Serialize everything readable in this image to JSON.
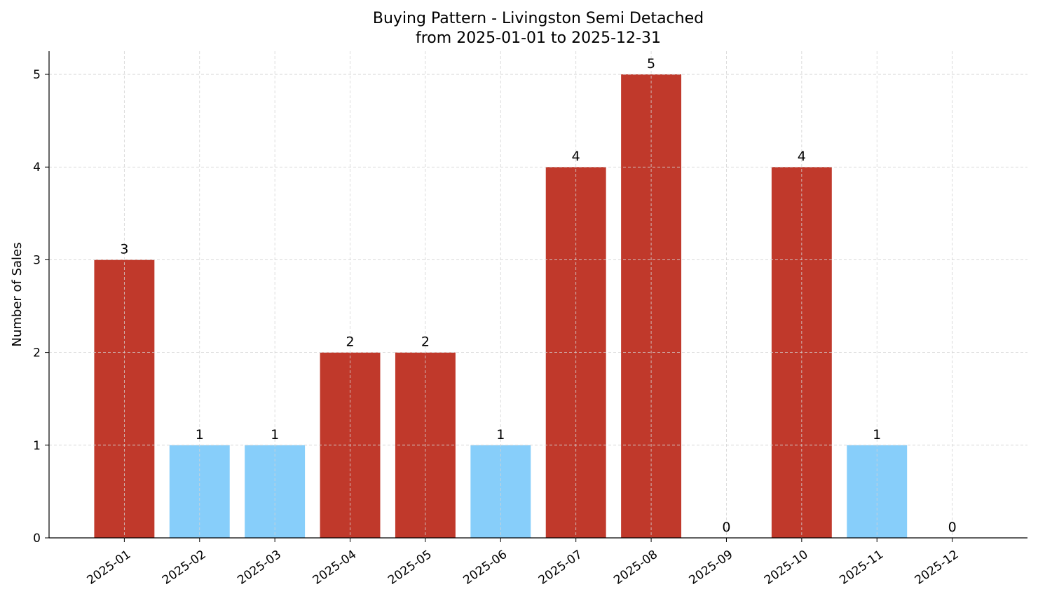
{
  "chart_data": {
    "type": "bar",
    "title": "Buying Pattern - Livingston Semi Detached",
    "subtitle": "from 2025-01-01 to 2025-12-31",
    "xlabel": "",
    "ylabel": "Number of Sales",
    "categories": [
      "2025-01",
      "2025-02",
      "2025-03",
      "2025-04",
      "2025-05",
      "2025-06",
      "2025-07",
      "2025-08",
      "2025-09",
      "2025-10",
      "2025-11",
      "2025-12"
    ],
    "values": [
      3,
      1,
      1,
      2,
      2,
      1,
      4,
      5,
      0,
      4,
      1,
      0
    ],
    "bar_colors": [
      "#c0392b",
      "#87cefa",
      "#87cefa",
      "#c0392b",
      "#c0392b",
      "#87cefa",
      "#c0392b",
      "#c0392b",
      "#87cefa",
      "#c0392b",
      "#87cefa",
      "#87cefa"
    ],
    "colors": {
      "high": "#c0392b",
      "low": "#87cefa"
    },
    "ylim": [
      0,
      5.25
    ],
    "yticks": [
      0,
      1,
      2,
      3,
      4,
      5
    ],
    "grid": true,
    "data_labels": true
  }
}
